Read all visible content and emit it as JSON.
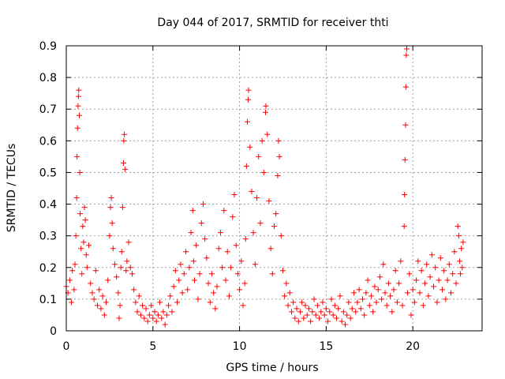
{
  "chart_data": {
    "type": "scatter",
    "title": "Day 044 of 2017, SRMTID for receiver thti",
    "xlabel": "GPS time / hours",
    "ylabel": "SRMTID / TECUs",
    "xlim": [
      0,
      24
    ],
    "ylim": [
      0,
      0.9
    ],
    "xticks": [
      0,
      5,
      10,
      15,
      20
    ],
    "xtick_labels": [
      "0",
      "5",
      "10",
      "15",
      "20"
    ],
    "yticks": [
      0,
      0.1,
      0.2,
      0.3,
      0.4,
      0.5,
      0.6,
      0.7,
      0.8,
      0.9
    ],
    "ytick_labels": [
      "0",
      "0.1",
      "0.2",
      "0.3",
      "0.4",
      "0.5",
      "0.6",
      "0.7",
      "0.8",
      "0.9"
    ],
    "grid": true,
    "marker": "plus",
    "color": "#ff0000",
    "series": [
      {
        "name": "SRMTID",
        "points": [
          [
            0.0,
            0.14
          ],
          [
            0.1,
            0.12
          ],
          [
            0.2,
            0.16
          ],
          [
            0.3,
            0.09
          ],
          [
            0.35,
            0.19
          ],
          [
            0.45,
            0.13
          ],
          [
            0.5,
            0.21
          ],
          [
            0.55,
            0.3
          ],
          [
            0.6,
            0.42
          ],
          [
            0.62,
            0.55
          ],
          [
            0.65,
            0.64
          ],
          [
            0.68,
            0.71
          ],
          [
            0.7,
            0.74
          ],
          [
            0.72,
            0.76
          ],
          [
            0.75,
            0.68
          ],
          [
            0.78,
            0.5
          ],
          [
            0.8,
            0.37
          ],
          [
            0.85,
            0.26
          ],
          [
            0.9,
            0.18
          ],
          [
            0.95,
            0.33
          ],
          [
            1.0,
            0.28
          ],
          [
            1.05,
            0.39
          ],
          [
            1.1,
            0.35
          ],
          [
            1.15,
            0.24
          ],
          [
            1.2,
            0.2
          ],
          [
            1.3,
            0.27
          ],
          [
            1.4,
            0.15
          ],
          [
            1.5,
            0.12
          ],
          [
            1.6,
            0.1
          ],
          [
            1.7,
            0.19
          ],
          [
            1.8,
            0.08
          ],
          [
            1.9,
            0.13
          ],
          [
            2.0,
            0.07
          ],
          [
            2.1,
            0.11
          ],
          [
            2.2,
            0.05
          ],
          [
            2.3,
            0.09
          ],
          [
            2.4,
            0.16
          ],
          [
            2.5,
            0.3
          ],
          [
            2.55,
            0.39
          ],
          [
            2.6,
            0.42
          ],
          [
            2.65,
            0.34
          ],
          [
            2.7,
            0.26
          ],
          [
            2.8,
            0.21
          ],
          [
            2.9,
            0.17
          ],
          [
            3.0,
            0.12
          ],
          [
            3.05,
            0.04
          ],
          [
            3.1,
            0.08
          ],
          [
            3.15,
            0.2
          ],
          [
            3.2,
            0.25
          ],
          [
            3.25,
            0.39
          ],
          [
            3.3,
            0.53
          ],
          [
            3.32,
            0.6
          ],
          [
            3.35,
            0.62
          ],
          [
            3.4,
            0.51
          ],
          [
            3.45,
            0.19
          ],
          [
            3.5,
            0.22
          ],
          [
            3.6,
            0.28
          ],
          [
            3.7,
            0.2
          ],
          [
            3.8,
            0.18
          ],
          [
            3.9,
            0.13
          ],
          [
            4.0,
            0.09
          ],
          [
            4.1,
            0.06
          ],
          [
            4.2,
            0.11
          ],
          [
            4.3,
            0.05
          ],
          [
            4.4,
            0.08
          ],
          [
            4.5,
            0.04
          ],
          [
            4.6,
            0.07
          ],
          [
            4.7,
            0.03
          ],
          [
            4.8,
            0.05
          ],
          [
            4.9,
            0.08
          ],
          [
            5.0,
            0.04
          ],
          [
            5.1,
            0.06
          ],
          [
            5.2,
            0.03
          ],
          [
            5.3,
            0.05
          ],
          [
            5.4,
            0.09
          ],
          [
            5.5,
            0.04
          ],
          [
            5.6,
            0.06
          ],
          [
            5.7,
            0.02
          ],
          [
            5.8,
            0.05
          ],
          [
            5.9,
            0.08
          ],
          [
            6.0,
            0.11
          ],
          [
            6.1,
            0.06
          ],
          [
            6.2,
            0.14
          ],
          [
            6.3,
            0.19
          ],
          [
            6.4,
            0.09
          ],
          [
            6.5,
            0.16
          ],
          [
            6.6,
            0.21
          ],
          [
            6.7,
            0.12
          ],
          [
            6.8,
            0.18
          ],
          [
            6.9,
            0.25
          ],
          [
            7.0,
            0.13
          ],
          [
            7.1,
            0.2
          ],
          [
            7.2,
            0.31
          ],
          [
            7.3,
            0.38
          ],
          [
            7.35,
            0.22
          ],
          [
            7.4,
            0.16
          ],
          [
            7.5,
            0.27
          ],
          [
            7.6,
            0.1
          ],
          [
            7.7,
            0.18
          ],
          [
            7.8,
            0.34
          ],
          [
            7.9,
            0.4
          ],
          [
            8.0,
            0.29
          ],
          [
            8.1,
            0.23
          ],
          [
            8.2,
            0.15
          ],
          [
            8.3,
            0.09
          ],
          [
            8.4,
            0.18
          ],
          [
            8.5,
            0.12
          ],
          [
            8.6,
            0.07
          ],
          [
            8.7,
            0.14
          ],
          [
            8.8,
            0.26
          ],
          [
            8.9,
            0.31
          ],
          [
            9.0,
            0.2
          ],
          [
            9.1,
            0.38
          ],
          [
            9.2,
            0.16
          ],
          [
            9.3,
            0.25
          ],
          [
            9.4,
            0.11
          ],
          [
            9.5,
            0.2
          ],
          [
            9.6,
            0.36
          ],
          [
            9.7,
            0.43
          ],
          [
            9.8,
            0.27
          ],
          [
            9.9,
            0.18
          ],
          [
            10.0,
            0.13
          ],
          [
            10.1,
            0.22
          ],
          [
            10.2,
            0.08
          ],
          [
            10.3,
            0.15
          ],
          [
            10.35,
            0.29
          ],
          [
            10.4,
            0.52
          ],
          [
            10.45,
            0.66
          ],
          [
            10.5,
            0.73
          ],
          [
            10.52,
            0.76
          ],
          [
            10.6,
            0.58
          ],
          [
            10.7,
            0.44
          ],
          [
            10.8,
            0.31
          ],
          [
            10.9,
            0.21
          ],
          [
            11.0,
            0.42
          ],
          [
            11.1,
            0.55
          ],
          [
            11.2,
            0.34
          ],
          [
            11.3,
            0.6
          ],
          [
            11.4,
            0.5
          ],
          [
            11.5,
            0.69
          ],
          [
            11.52,
            0.71
          ],
          [
            11.6,
            0.62
          ],
          [
            11.7,
            0.41
          ],
          [
            11.8,
            0.26
          ],
          [
            11.9,
            0.18
          ],
          [
            12.0,
            0.33
          ],
          [
            12.1,
            0.37
          ],
          [
            12.2,
            0.49
          ],
          [
            12.25,
            0.6
          ],
          [
            12.3,
            0.55
          ],
          [
            12.4,
            0.3
          ],
          [
            12.5,
            0.19
          ],
          [
            12.6,
            0.11
          ],
          [
            12.7,
            0.15
          ],
          [
            12.8,
            0.08
          ],
          [
            12.9,
            0.12
          ],
          [
            13.0,
            0.06
          ],
          [
            13.1,
            0.09
          ],
          [
            13.2,
            0.04
          ],
          [
            13.3,
            0.07
          ],
          [
            13.4,
            0.03
          ],
          [
            13.5,
            0.06
          ],
          [
            13.6,
            0.09
          ],
          [
            13.7,
            0.04
          ],
          [
            13.8,
            0.08
          ],
          [
            13.9,
            0.05
          ],
          [
            14.0,
            0.07
          ],
          [
            14.1,
            0.03
          ],
          [
            14.2,
            0.06
          ],
          [
            14.3,
            0.1
          ],
          [
            14.4,
            0.05
          ],
          [
            14.5,
            0.08
          ],
          [
            14.6,
            0.04
          ],
          [
            14.7,
            0.06
          ],
          [
            14.8,
            0.09
          ],
          [
            14.9,
            0.05
          ],
          [
            15.0,
            0.07
          ],
          [
            15.1,
            0.03
          ],
          [
            15.2,
            0.06
          ],
          [
            15.3,
            0.1
          ],
          [
            15.4,
            0.05
          ],
          [
            15.5,
            0.08
          ],
          [
            15.6,
            0.04
          ],
          [
            15.7,
            0.07
          ],
          [
            15.8,
            0.11
          ],
          [
            15.9,
            0.03
          ],
          [
            16.0,
            0.06
          ],
          [
            16.1,
            0.02
          ],
          [
            16.2,
            0.05
          ],
          [
            16.3,
            0.09
          ],
          [
            16.4,
            0.04
          ],
          [
            16.5,
            0.07
          ],
          [
            16.6,
            0.12
          ],
          [
            16.7,
            0.06
          ],
          [
            16.8,
            0.09
          ],
          [
            16.9,
            0.13
          ],
          [
            17.0,
            0.07
          ],
          [
            17.1,
            0.1
          ],
          [
            17.2,
            0.05
          ],
          [
            17.3,
            0.12
          ],
          [
            17.4,
            0.16
          ],
          [
            17.5,
            0.08
          ],
          [
            17.6,
            0.11
          ],
          [
            17.7,
            0.06
          ],
          [
            17.8,
            0.14
          ],
          [
            17.9,
            0.09
          ],
          [
            18.0,
            0.13
          ],
          [
            18.1,
            0.17
          ],
          [
            18.2,
            0.1
          ],
          [
            18.3,
            0.21
          ],
          [
            18.4,
            0.12
          ],
          [
            18.5,
            0.08
          ],
          [
            18.6,
            0.15
          ],
          [
            18.7,
            0.11
          ],
          [
            18.8,
            0.06
          ],
          [
            18.9,
            0.13
          ],
          [
            19.0,
            0.19
          ],
          [
            19.1,
            0.09
          ],
          [
            19.2,
            0.15
          ],
          [
            19.3,
            0.22
          ],
          [
            19.4,
            0.08
          ],
          [
            19.5,
            0.33
          ],
          [
            19.52,
            0.43
          ],
          [
            19.55,
            0.54
          ],
          [
            19.58,
            0.65
          ],
          [
            19.6,
            0.77
          ],
          [
            19.62,
            0.87
          ],
          [
            19.65,
            0.89
          ],
          [
            19.7,
            0.12
          ],
          [
            19.8,
            0.18
          ],
          [
            19.9,
            0.05
          ],
          [
            20.0,
            0.13
          ],
          [
            20.1,
            0.09
          ],
          [
            20.2,
            0.16
          ],
          [
            20.3,
            0.22
          ],
          [
            20.4,
            0.12
          ],
          [
            20.5,
            0.19
          ],
          [
            20.6,
            0.08
          ],
          [
            20.7,
            0.15
          ],
          [
            20.8,
            0.21
          ],
          [
            20.9,
            0.11
          ],
          [
            21.0,
            0.17
          ],
          [
            21.1,
            0.24
          ],
          [
            21.2,
            0.14
          ],
          [
            21.3,
            0.2
          ],
          [
            21.4,
            0.09
          ],
          [
            21.5,
            0.16
          ],
          [
            21.6,
            0.23
          ],
          [
            21.7,
            0.13
          ],
          [
            21.8,
            0.19
          ],
          [
            21.9,
            0.1
          ],
          [
            22.0,
            0.16
          ],
          [
            22.1,
            0.21
          ],
          [
            22.2,
            0.12
          ],
          [
            22.3,
            0.18
          ],
          [
            22.4,
            0.25
          ],
          [
            22.5,
            0.15
          ],
          [
            22.6,
            0.33
          ],
          [
            22.65,
            0.3
          ],
          [
            22.7,
            0.22
          ],
          [
            22.75,
            0.18
          ],
          [
            22.8,
            0.26
          ],
          [
            22.85,
            0.2
          ],
          [
            22.9,
            0.28
          ]
        ]
      }
    ]
  }
}
